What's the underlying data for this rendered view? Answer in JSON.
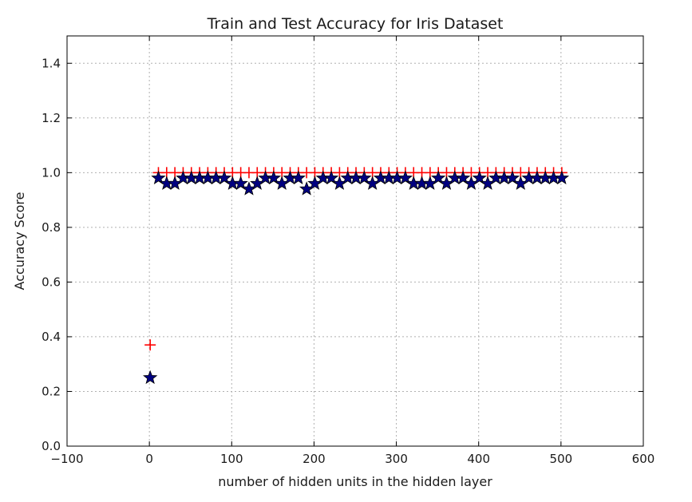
{
  "chart_data": {
    "type": "scatter",
    "title": "Train and Test Accuracy for Iris Dataset",
    "xlabel": "number of hidden units in the hidden layer",
    "ylabel": "Accuracy Score",
    "xlim": [
      -100,
      600
    ],
    "ylim": [
      0.0,
      1.5
    ],
    "xticks": [
      -100,
      0,
      100,
      200,
      300,
      400,
      500,
      600
    ],
    "xtick_labels": [
      "−100",
      "0",
      "100",
      "200",
      "300",
      "400",
      "500",
      "600"
    ],
    "yticks": [
      0.0,
      0.2,
      0.4,
      0.6,
      0.8,
      1.0,
      1.2,
      1.4
    ],
    "ytick_labels": [
      "0.0",
      "0.2",
      "0.4",
      "0.6",
      "0.8",
      "1.0",
      "1.2",
      "1.4"
    ],
    "grid": true,
    "legend": "none",
    "colors": {
      "train": "#ff0000",
      "test_fill": "#000080",
      "test_edge": "#000000"
    },
    "x": [
      1,
      11,
      21,
      31,
      41,
      51,
      61,
      71,
      81,
      91,
      101,
      111,
      121,
      131,
      141,
      151,
      161,
      171,
      181,
      191,
      201,
      211,
      221,
      231,
      241,
      251,
      261,
      271,
      281,
      291,
      301,
      311,
      321,
      331,
      341,
      351,
      361,
      371,
      381,
      391,
      401,
      411,
      421,
      431,
      441,
      451,
      461,
      471,
      481,
      491,
      501
    ],
    "series": [
      {
        "marker": "plus",
        "values": [
          0.37,
          1.0,
          1.0,
          1.0,
          1.0,
          1.0,
          1.0,
          1.0,
          1.0,
          1.0,
          1.0,
          1.0,
          1.0,
          1.0,
          1.0,
          1.0,
          1.0,
          1.0,
          1.0,
          1.0,
          1.0,
          1.0,
          1.0,
          1.0,
          1.0,
          1.0,
          1.0,
          1.0,
          1.0,
          1.0,
          1.0,
          1.0,
          1.0,
          1.0,
          1.0,
          1.0,
          1.0,
          1.0,
          1.0,
          1.0,
          1.0,
          1.0,
          1.0,
          1.0,
          1.0,
          1.0,
          1.0,
          1.0,
          1.0,
          1.0,
          1.0
        ]
      },
      {
        "marker": "star",
        "values": [
          0.25,
          0.98,
          0.96,
          0.96,
          0.98,
          0.98,
          0.98,
          0.98,
          0.98,
          0.98,
          0.96,
          0.96,
          0.94,
          0.96,
          0.98,
          0.98,
          0.96,
          0.98,
          0.98,
          0.94,
          0.96,
          0.98,
          0.98,
          0.96,
          0.98,
          0.98,
          0.98,
          0.96,
          0.98,
          0.98,
          0.98,
          0.98,
          0.96,
          0.96,
          0.96,
          0.98,
          0.96,
          0.98,
          0.98,
          0.96,
          0.98,
          0.96,
          0.98,
          0.98,
          0.98,
          0.96,
          0.98,
          0.98,
          0.98,
          0.98,
          0.98
        ]
      }
    ]
  }
}
